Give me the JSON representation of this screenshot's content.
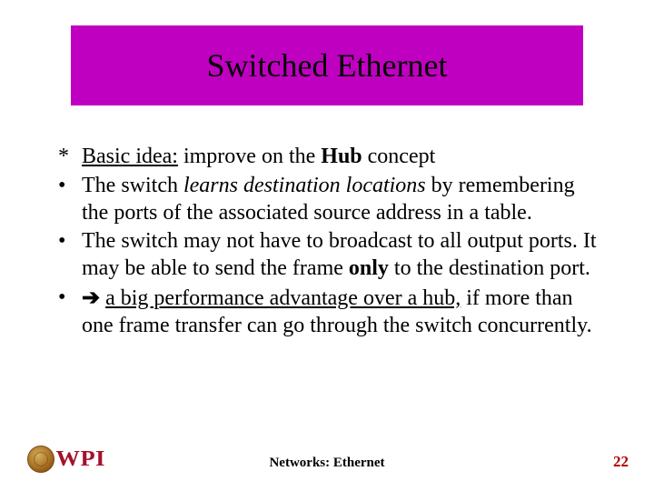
{
  "colors": {
    "title_bg": "#c000c0",
    "title_text": "#000000",
    "body_text": "#000000",
    "accent_red": "#a8102a",
    "page_number": "#b00000",
    "background": "#ffffff"
  },
  "title": "Switched Ethernet",
  "bullets": [
    {
      "marker": "*",
      "segments": [
        {
          "text": "Basic idea:",
          "underline": true
        },
        {
          "text": " improve on the "
        },
        {
          "text": "Hub",
          "bold": true
        },
        {
          "text": " concept"
        }
      ]
    },
    {
      "marker": "•",
      "segments": [
        {
          "text": "The switch "
        },
        {
          "text": "learns destination locations",
          "italic": true
        },
        {
          "text": " by remembering the ports of the associated source address in a table."
        }
      ]
    },
    {
      "marker": "•",
      "segments": [
        {
          "text": "The switch may not have to broadcast to all output ports. It may be able to send the frame "
        },
        {
          "text": "only",
          "bold": true
        },
        {
          "text": " to the destination port."
        }
      ]
    },
    {
      "marker": "•",
      "segments": [
        {
          "text": "➔",
          "arrow": true,
          "bold": true
        },
        {
          "text": " "
        },
        {
          "text": "a big performance advantage over a hub,",
          "underline": true
        },
        {
          "text": " if more than one frame transfer can go through the switch concurrently."
        }
      ]
    }
  ],
  "footer": {
    "center": "Networks: Ethernet",
    "page": "22",
    "logo_text": "WPI"
  },
  "typography": {
    "title_fontsize": 36,
    "body_fontsize": 24,
    "footer_center_fontsize": 15,
    "footer_page_fontsize": 17
  }
}
